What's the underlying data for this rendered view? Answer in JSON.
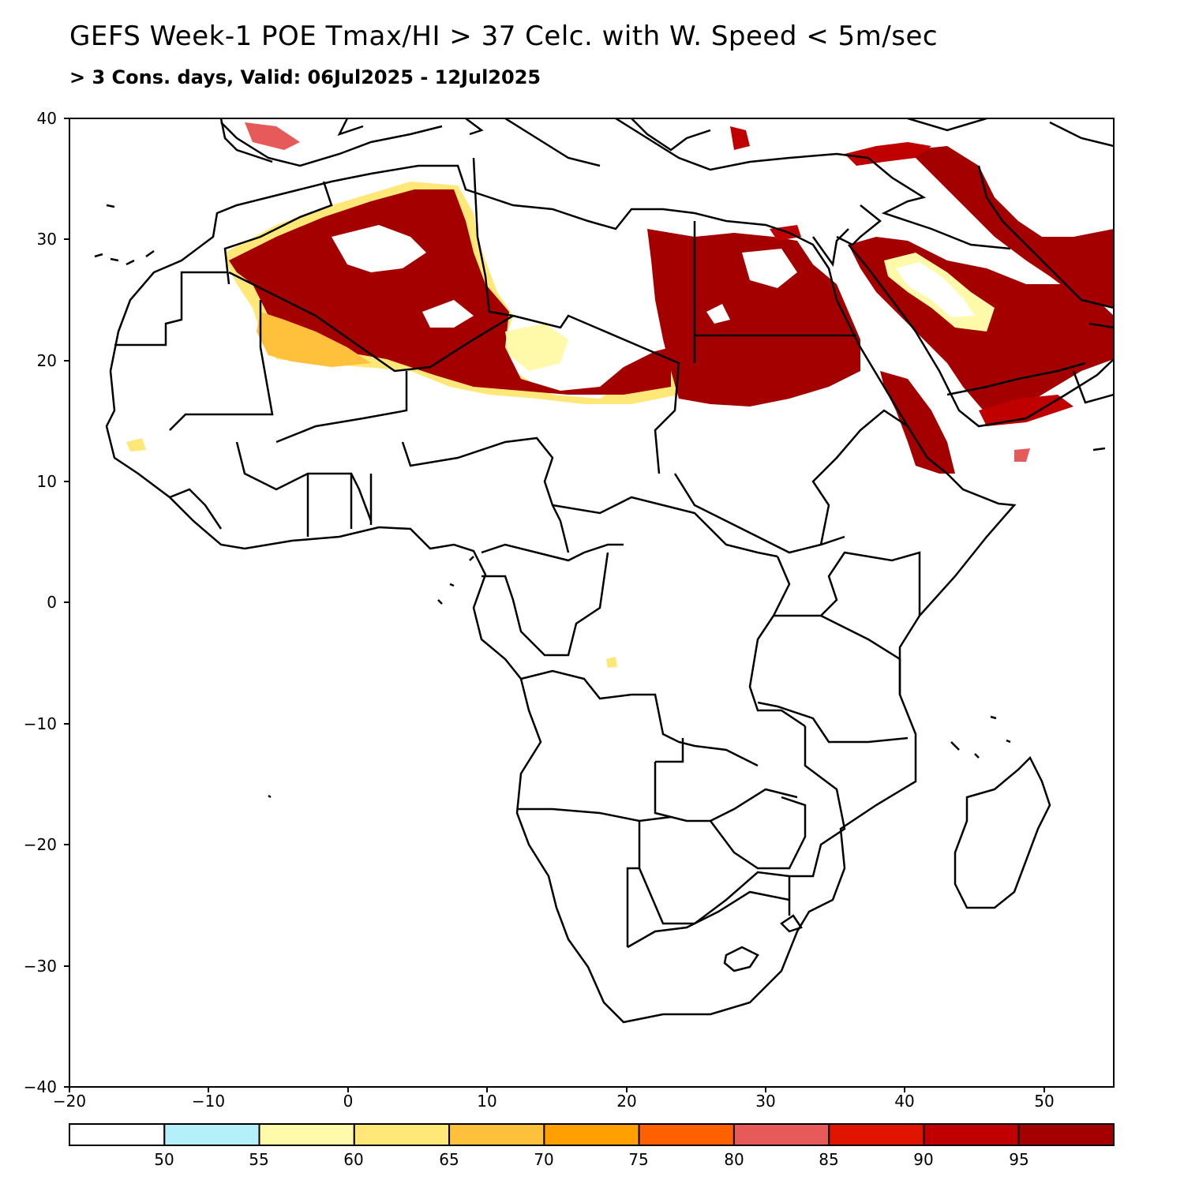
{
  "title": "GEFS Week-1 POE Tmax/HI > 37 Celc. with W. Speed < 5m/sec",
  "subtitle": "> 3 Cons. days, Valid: 06Jul2025 - 12Jul2025",
  "map": {
    "lon_range": [
      -20,
      55
    ],
    "lat_range": [
      -40,
      40
    ],
    "x_ticks": [
      "−20",
      "−10",
      "0",
      "10",
      "20",
      "30",
      "40",
      "50"
    ],
    "y_ticks": [
      "−40",
      "−30",
      "−20",
      "−10",
      "0",
      "10",
      "20",
      "30",
      "40"
    ]
  },
  "colorbar": {
    "labels": [
      "50",
      "55",
      "60",
      "65",
      "70",
      "75",
      "80",
      "85",
      "90",
      "95"
    ],
    "colors": [
      "#ffffff",
      "#b4f0fa",
      "#fffaaa",
      "#ffe878",
      "#ffc03c",
      "#ffa000",
      "#ff6000",
      "#e65a5a",
      "#e11400",
      "#c00000",
      "#a50000"
    ]
  }
}
